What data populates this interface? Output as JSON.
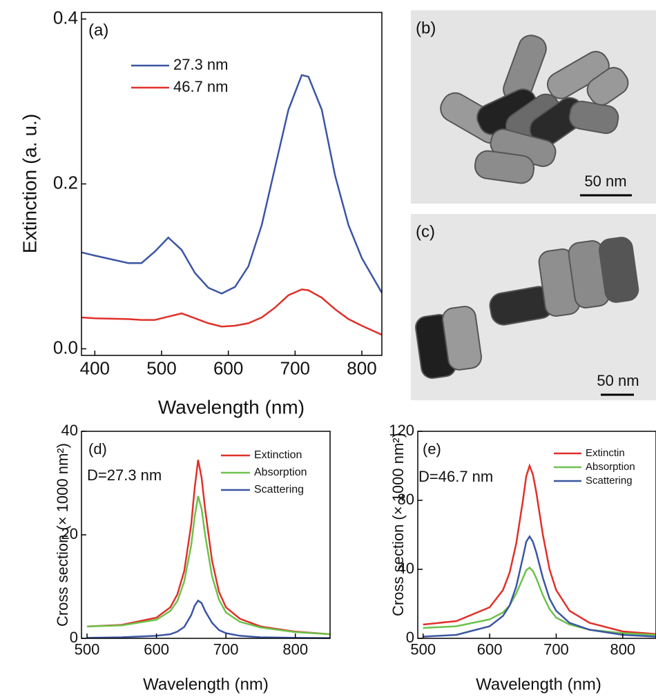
{
  "chart_data": [
    {
      "type": "line",
      "xlabel": "Wavelength (nm)",
      "ylabel": "Extinction (a. u.)",
      "annotations": [
        "(a)"
      ],
      "x": [
        380,
        400,
        450,
        470,
        490,
        510,
        530,
        550,
        570,
        590,
        610,
        630,
        650,
        670,
        690,
        710,
        720,
        740,
        760,
        780,
        800,
        830
      ],
      "series": [
        {
          "name": "27.3 nm",
          "color": "#3b55a3",
          "values": [
            0.117,
            0.113,
            0.104,
            0.104,
            0.118,
            0.135,
            0.12,
            0.092,
            0.074,
            0.067,
            0.075,
            0.1,
            0.15,
            0.22,
            0.29,
            0.332,
            0.33,
            0.29,
            0.21,
            0.15,
            0.11,
            0.068
          ]
        },
        {
          "name": "46.7 nm",
          "color": "#e0302a",
          "values": [
            0.038,
            0.037,
            0.036,
            0.035,
            0.035,
            0.039,
            0.043,
            0.037,
            0.031,
            0.027,
            0.028,
            0.031,
            0.038,
            0.05,
            0.065,
            0.072,
            0.071,
            0.062,
            0.048,
            0.036,
            0.028,
            0.017
          ]
        }
      ],
      "xlim": [
        380,
        830
      ],
      "xticks": [
        400,
        500,
        600,
        700,
        800
      ],
      "ylim": [
        -0.008,
        0.408
      ],
      "yticks": [
        {
          "value": 0,
          "label": "0.0"
        },
        0.2,
        0.4
      ]
    },
    {
      "type": "line",
      "xlabel": "Wavelength (nm)",
      "ylabel": "Cross section (× 1000 nm²)",
      "annotations": [
        "(d)",
        "D=27.3 nm"
      ],
      "x": [
        500,
        550,
        600,
        620,
        630,
        640,
        650,
        655,
        660,
        665,
        670,
        680,
        690,
        700,
        720,
        750,
        800,
        850
      ],
      "series": [
        {
          "name": "Extinction",
          "color": "#e0302a",
          "values": [
            2.3,
            2.6,
            4,
            6,
            8.5,
            13,
            22,
            29,
            34.5,
            31,
            25,
            15,
            9,
            6,
            3.8,
            2.3,
            1.3,
            0.8
          ]
        },
        {
          "name": "Absorption",
          "color": "#6cc24a",
          "values": [
            2.3,
            2.5,
            3.6,
            5.3,
            7.2,
            11,
            18,
            23.5,
            27.5,
            25,
            20,
            12,
            7.5,
            5,
            3.2,
            2.1,
            1.2,
            0.8
          ]
        },
        {
          "name": "Scattering",
          "color": "#3b55a3",
          "values": [
            0.1,
            0.2,
            0.5,
            0.8,
            1.3,
            2.2,
            4.5,
            6.3,
            7.3,
            6.8,
            5.3,
            3,
            1.6,
            1,
            0.5,
            0.2,
            0.1,
            0.05
          ]
        }
      ],
      "xlim": [
        492,
        850
      ],
      "xticks": [
        500,
        600,
        700,
        800
      ],
      "ylim": [
        0,
        40
      ],
      "yticks": [
        0,
        20,
        40
      ]
    },
    {
      "type": "line",
      "xlabel": "Wavelength (nm)",
      "ylabel": "Cross section (× 1000 nm²)",
      "annotations": [
        "(e)",
        "D=46.7 nm"
      ],
      "x": [
        500,
        550,
        600,
        620,
        630,
        640,
        650,
        655,
        660,
        665,
        670,
        680,
        690,
        700,
        720,
        750,
        800,
        850
      ],
      "series": [
        {
          "name": "Extinctin",
          "color": "#e0302a",
          "values": [
            8,
            10,
            18,
            28,
            38,
            55,
            80,
            94,
            100,
            95,
            85,
            60,
            40,
            28,
            16,
            9,
            4,
            2.5
          ]
        },
        {
          "name": "Absorption",
          "color": "#6cc24a",
          "values": [
            6,
            7,
            11,
            15,
            19,
            26,
            35,
            39.5,
            41,
            39,
            35,
            25,
            17,
            12,
            8,
            5,
            3,
            2
          ]
        },
        {
          "name": "Scattering",
          "color": "#3b55a3",
          "values": [
            1,
            2,
            7,
            13,
            19,
            30,
            47,
            56,
            59,
            56,
            50,
            35,
            23,
            16,
            9,
            5,
            2,
            1
          ]
        }
      ],
      "xlim": [
        492,
        850
      ],
      "xticks": [
        500,
        600,
        700,
        800
      ],
      "ylim": [
        0,
        120
      ],
      "yticks": [
        0,
        40,
        80,
        120
      ]
    }
  ],
  "images": [
    {
      "label": "(b)",
      "scale_bar": "50 nm"
    },
    {
      "label": "(c)",
      "scale_bar": "50 nm"
    }
  ]
}
